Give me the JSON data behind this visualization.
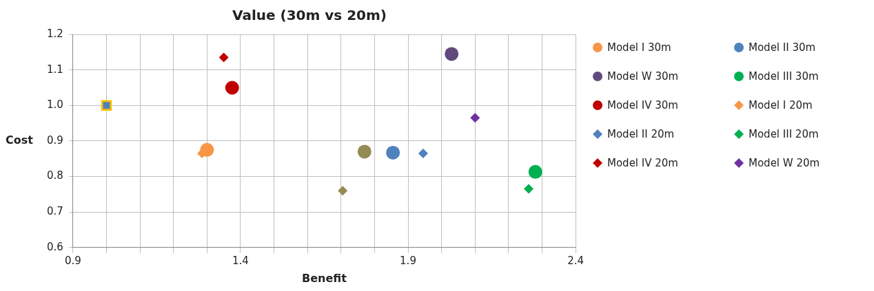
{
  "chart_data": {
    "type": "scatter",
    "title": "Value (30m vs 20m)",
    "xlabel": "Benefit",
    "ylabel": "Cost",
    "xlim": [
      0.9,
      2.4
    ],
    "xticks": [
      0.9,
      {
        "value": 1.0,
        "label": null
      },
      {
        "value": 1.1,
        "label": null
      },
      {
        "value": 1.2,
        "label": null
      },
      {
        "value": 1.3,
        "label": null
      },
      1.4,
      {
        "value": 1.5,
        "label": null
      },
      {
        "value": 1.6,
        "label": null
      },
      {
        "value": 1.7,
        "label": null
      },
      {
        "value": 1.8,
        "label": null
      },
      1.9,
      {
        "value": 2.0,
        "label": null
      },
      {
        "value": 2.1,
        "label": null
      },
      {
        "value": 2.2,
        "label": null
      },
      {
        "value": 2.3,
        "label": null
      },
      2.4
    ],
    "ylim": [
      0.6,
      1.2
    ],
    "yticks": [
      0.6,
      0.7,
      0.8,
      0.9,
      {
        "value": 1.0,
        "label": "1.0"
      },
      1.1,
      1.2
    ],
    "grid": true,
    "legend": "right",
    "series": [
      {
        "name": "Model I 30m",
        "color": "#f79646",
        "marker": "circle",
        "x": [
          1.3
        ],
        "values": [
          0.875
        ]
      },
      {
        "name": "Model II 30m",
        "color": "#4f81bd",
        "marker": "circle",
        "x": [
          1.855
        ],
        "values": [
          0.867
        ]
      },
      {
        "color": "#948a54",
        "marker": "circle",
        "x": [
          1.77
        ],
        "values": [
          0.87
        ]
      },
      {
        "color": "#ffc000",
        "marker": "square",
        "x": [
          1.0
        ],
        "values": [
          1.0
        ]
      },
      {
        "name": "Model W 30m",
        "color": "#604a7b",
        "marker": "circle",
        "x": [
          2.03
        ],
        "values": [
          1.145
        ]
      },
      {
        "name": "Model III 30m",
        "color": "#00b050",
        "marker": "circle",
        "x": [
          2.28
        ],
        "values": [
          0.813
        ]
      },
      {
        "name": "Model IV 30m",
        "color": "#c00000",
        "marker": "circle",
        "x": [
          1.375
        ],
        "values": [
          1.05
        ]
      },
      {
        "name": "Model I 20m",
        "color": "#f79646",
        "marker": "diamond",
        "x": [
          1.285
        ],
        "values": [
          0.865
        ]
      },
      {
        "name": "Model II 20m",
        "color": "#4f81bd",
        "marker": "diamond",
        "x": [
          1.945
        ],
        "values": [
          0.865
        ]
      },
      {
        "color": "#948a54",
        "marker": "diamond",
        "x": [
          1.705
        ],
        "values": [
          0.76
        ]
      },
      {
        "color": "#4f81bd",
        "marker": "square",
        "x": [
          1.0
        ],
        "values": [
          1.0
        ]
      },
      {
        "name": "Model III 20m",
        "color": "#00b050",
        "marker": "diamond",
        "x": [
          2.26
        ],
        "values": [
          0.765
        ]
      },
      {
        "name": "Model IV 20m",
        "color": "#c00000",
        "marker": "diamond",
        "x": [
          1.35
        ],
        "values": [
          1.135
        ]
      },
      {
        "name": "Model W 20m",
        "color": "#7030a0",
        "marker": "diamond",
        "x": [
          2.1
        ],
        "values": [
          0.965
        ]
      }
    ]
  }
}
